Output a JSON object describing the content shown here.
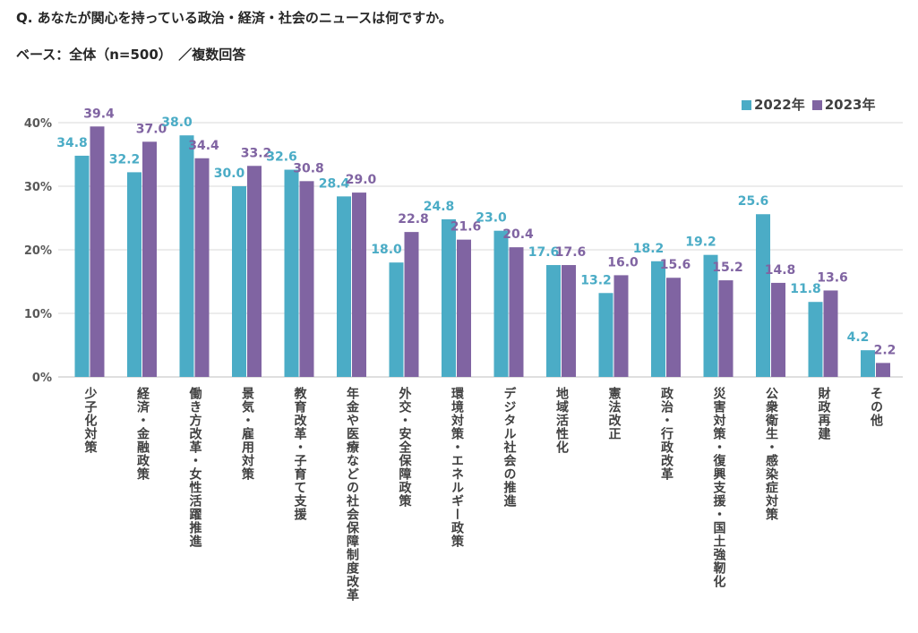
{
  "title": "Q. あなたが関心を持っている政治・経済・社会のニュースは何ですか。",
  "subtitle": "ベース：全体（n=500）　／複数回答",
  "chart_data": {
    "type": "bar",
    "categories": [
      "少子化対策",
      "経済・金融政策",
      "働き方改革・女性活躍推進",
      "景気・雇用対策",
      "教育改革・子育て支援",
      "年金や医療などの社会保障制度改革",
      "外交・安全保障政策",
      "環境対策・エネルギー政策",
      "デジタル社会の推進",
      "地域活性化",
      "憲法改正",
      "政治・行政改革",
      "災害対策・復興支援・国土強靭化",
      "公衆衛生・感染症対策",
      "財政再建",
      "その他"
    ],
    "series": [
      {
        "name": "2022年",
        "color": "#4bacc6",
        "values": [
          34.8,
          32.2,
          38.0,
          30.0,
          32.6,
          28.4,
          18.0,
          24.8,
          23.0,
          17.6,
          13.2,
          18.2,
          19.2,
          25.6,
          11.8,
          4.2
        ]
      },
      {
        "name": "2023年",
        "color": "#8064a2",
        "values": [
          39.4,
          37.0,
          34.4,
          33.2,
          30.8,
          29.0,
          22.8,
          21.6,
          20.4,
          17.6,
          16.0,
          15.6,
          15.2,
          14.8,
          13.6,
          2.2
        ]
      }
    ],
    "yticks": [
      "0%",
      "10%",
      "20%",
      "30%",
      "40%"
    ],
    "ylim": [
      0,
      40
    ],
    "grid": true,
    "legend": "top-right"
  }
}
